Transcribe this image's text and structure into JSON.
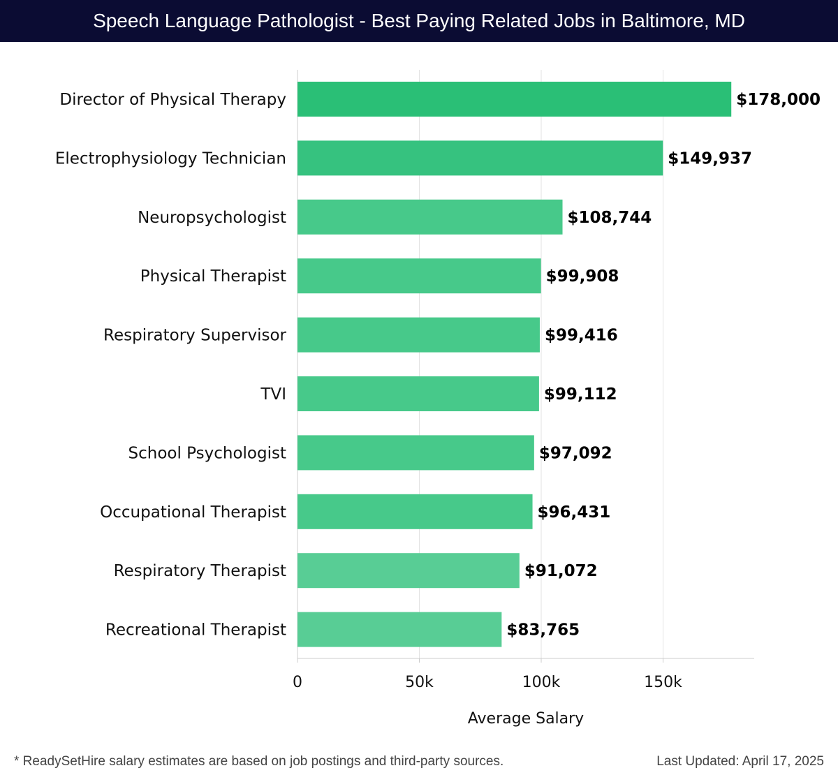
{
  "header": {
    "title": "Speech Language Pathologist - Best Paying Related Jobs in Baltimore, MD"
  },
  "chart_data": {
    "type": "bar",
    "orientation": "horizontal",
    "categories": [
      "Director of Physical Therapy",
      "Electrophysiology Technician",
      "Neuropsychologist",
      "Physical Therapist",
      "Respiratory Supervisor",
      "TVI",
      "School Psychologist",
      "Occupational Therapist",
      "Respiratory Therapist",
      "Recreational Therapist"
    ],
    "values": [
      178000,
      149937,
      108744,
      99908,
      99416,
      99112,
      97092,
      96431,
      91072,
      83765
    ],
    "value_labels": [
      "$178,000",
      "$149,937",
      "$108,744",
      "$99,908",
      "$99,416",
      "$99,112",
      "$97,092",
      "$96,431",
      "$91,072",
      "$83,765"
    ],
    "xlabel": "Average Salary",
    "ylabel": "",
    "xlim": [
      0,
      187500
    ],
    "xticks": [
      0,
      50000,
      100000,
      150000
    ],
    "xtick_labels": [
      "0",
      "50k",
      "100k",
      "150k"
    ],
    "grid": "vertical",
    "colors": {
      "bar_top": "#2abf76",
      "bar_mid": "#47c98a",
      "bar_low": "#58cd95"
    }
  },
  "footer": {
    "note": "* ReadySetHire salary estimates are based on job postings and third-party sources.",
    "updated": "Last Updated: April 17, 2025"
  }
}
